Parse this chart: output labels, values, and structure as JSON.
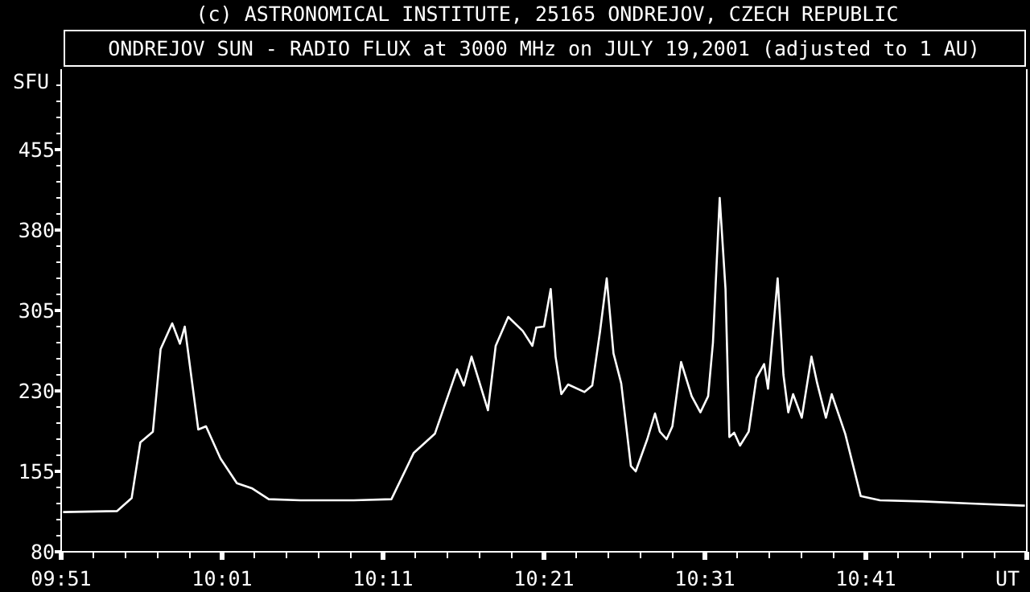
{
  "chart_data": {
    "type": "line",
    "title": "ONDREJOV SUN - RADIO FLUX at 3000 MHz on JULY 19,2001 (adjusted to 1 AU)",
    "annotations": [
      "(c) ASTRONOMICAL INSTITUTE, 25165 ONDREJOV, CZECH REPUBLIC"
    ],
    "ylabel": "SFU",
    "x": [
      9.852,
      9.908,
      9.923,
      9.932,
      9.945,
      9.953,
      9.965,
      9.973,
      9.978,
      9.992,
      10.0,
      10.015,
      10.032,
      10.048,
      10.065,
      10.098,
      10.153,
      10.192,
      10.215,
      10.237,
      10.26,
      10.267,
      10.275,
      10.292,
      10.3,
      10.313,
      10.328,
      10.338,
      10.342,
      10.35,
      10.357,
      10.362,
      10.368,
      10.375,
      10.392,
      10.4,
      10.408,
      10.415,
      10.422,
      10.43,
      10.44,
      10.445,
      10.457,
      10.465,
      10.47,
      10.477,
      10.483,
      10.492,
      10.503,
      10.512,
      10.52,
      10.525,
      10.532,
      10.538,
      10.542,
      10.547,
      10.553,
      10.562,
      10.57,
      10.578,
      10.582,
      10.592,
      10.598,
      10.603,
      10.608,
      10.617,
      10.627,
      10.633,
      10.642,
      10.648,
      10.662,
      10.678,
      10.698,
      10.742,
      10.792,
      10.848
    ],
    "series": [
      {
        "color": "#ffffff",
        "values": [
          117,
          118,
          130,
          182,
          192,
          269,
          293,
          274,
          290,
          194,
          197,
          167,
          144,
          139,
          129,
          128,
          128,
          129,
          172,
          190,
          250,
          235,
          262,
          212,
          272,
          299,
          286,
          272,
          289,
          290,
          325,
          262,
          227,
          236,
          229,
          235,
          285,
          335,
          265,
          237,
          160,
          155,
          185,
          209,
          192,
          185,
          197,
          257,
          225,
          210,
          225,
          275,
          410,
          325,
          187,
          191,
          179,
          192,
          242,
          255,
          232,
          335,
          245,
          210,
          227,
          205,
          262,
          237,
          205,
          227,
          190,
          132,
          128,
          127,
          125,
          123
        ]
      }
    ],
    "xlim": [
      9.85,
      10.85
    ],
    "ylim": [
      80,
      530
    ],
    "xticks": [
      {
        "value": 9.85,
        "label": "09:51"
      },
      {
        "value": 9.88333,
        "label": null
      },
      {
        "value": 9.91667,
        "label": null
      },
      {
        "value": 9.95,
        "label": null
      },
      {
        "value": 9.98333,
        "label": null
      },
      {
        "value": 10.01667,
        "label": "10:01"
      },
      {
        "value": 10.05,
        "label": null
      },
      {
        "value": 10.08333,
        "label": null
      },
      {
        "value": 10.11667,
        "label": null
      },
      {
        "value": 10.15,
        "label": null
      },
      {
        "value": 10.18333,
        "label": "10:11"
      },
      {
        "value": 10.21667,
        "label": null
      },
      {
        "value": 10.25,
        "label": null
      },
      {
        "value": 10.28333,
        "label": null
      },
      {
        "value": 10.31667,
        "label": null
      },
      {
        "value": 10.35,
        "label": "10:21"
      },
      {
        "value": 10.38333,
        "label": null
      },
      {
        "value": 10.41667,
        "label": null
      },
      {
        "value": 10.45,
        "label": null
      },
      {
        "value": 10.48333,
        "label": null
      },
      {
        "value": 10.51667,
        "label": "10:31"
      },
      {
        "value": 10.55,
        "label": null
      },
      {
        "value": 10.58333,
        "label": null
      },
      {
        "value": 10.61667,
        "label": null
      },
      {
        "value": 10.65,
        "label": null
      },
      {
        "value": 10.68333,
        "label": "10:41"
      },
      {
        "value": 10.71667,
        "label": null
      },
      {
        "value": 10.75,
        "label": null
      },
      {
        "value": 10.78333,
        "label": null
      },
      {
        "value": 10.81667,
        "label": null
      },
      {
        "value": 10.85,
        "label": "UT"
      }
    ],
    "yticks": [
      80,
      {
        "value": 95,
        "label": null
      },
      {
        "value": 110,
        "label": null
      },
      {
        "value": 125,
        "label": null
      },
      {
        "value": 140,
        "label": null
      },
      155,
      {
        "value": 170,
        "label": null
      },
      {
        "value": 185,
        "label": null
      },
      {
        "value": 200,
        "label": null
      },
      {
        "value": 215,
        "label": null
      },
      230,
      {
        "value": 245,
        "label": null
      },
      {
        "value": 260,
        "label": null
      },
      {
        "value": 275,
        "label": null
      },
      {
        "value": 290,
        "label": null
      },
      305,
      {
        "value": 320,
        "label": null
      },
      {
        "value": 335,
        "label": null
      },
      {
        "value": 350,
        "label": null
      },
      {
        "value": 365,
        "label": null
      },
      380,
      {
        "value": 395,
        "label": null
      },
      {
        "value": 410,
        "label": null
      },
      {
        "value": 425,
        "label": null
      },
      {
        "value": 440,
        "label": null
      },
      455,
      {
        "value": 470,
        "label": null
      },
      {
        "value": 485,
        "label": null
      },
      {
        "value": 500,
        "label": null
      },
      {
        "value": 515,
        "label": null
      }
    ],
    "grid": false,
    "marker": "none",
    "line_style": "solid"
  }
}
